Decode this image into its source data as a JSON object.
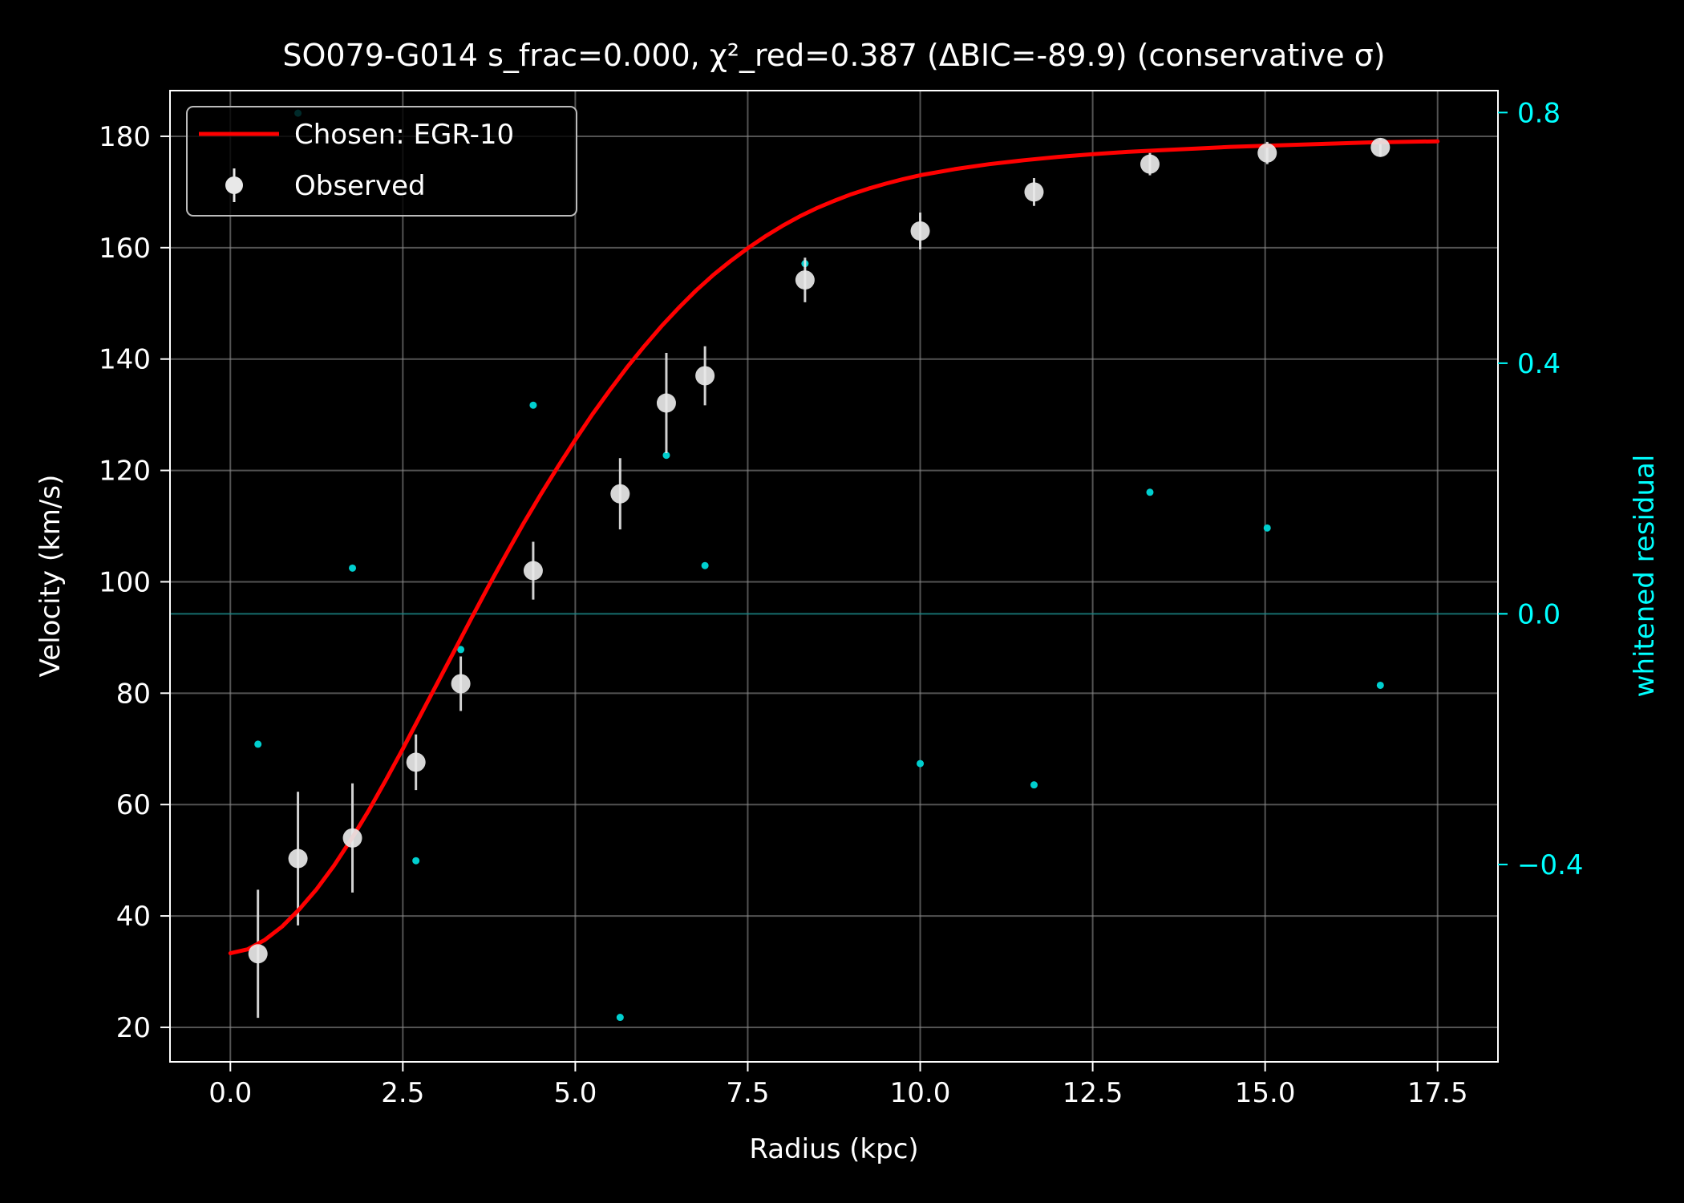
{
  "chart_data": {
    "type": "scatter",
    "title": "SO079-G014  s_frac=0.000, χ²_red=0.387  (ΔBIC=-89.9) (conservative σ)",
    "xlabel": "Radius (kpc)",
    "ylabel": "Velocity (km/s)",
    "y2label": "whitened residual",
    "xlim": [
      -0.875,
      18.375
    ],
    "ylim": [
      13.8,
      188.2
    ],
    "y2lim": [
      -0.715,
      0.835
    ],
    "x_ticks": [
      0.0,
      2.5,
      5.0,
      7.5,
      10.0,
      12.5,
      15.0,
      17.5
    ],
    "x_tick_labels": [
      "0.0",
      "2.5",
      "5.0",
      "7.5",
      "10.0",
      "12.5",
      "15.0",
      "17.5"
    ],
    "y_ticks": [
      20,
      40,
      60,
      80,
      100,
      120,
      140,
      160,
      180
    ],
    "y_tick_labels": [
      "20",
      "40",
      "60",
      "80",
      "100",
      "120",
      "140",
      "160",
      "180"
    ],
    "y2_ticks": [
      -0.4,
      0.0,
      0.4,
      0.8
    ],
    "y2_tick_labels": [
      "−0.4",
      "0.0",
      "0.4",
      "0.8"
    ],
    "grid": true,
    "legend_position": "top-left",
    "colors": {
      "background": "#000000",
      "foreground": "#ffffff",
      "model": "#ff0000",
      "observed": "#e8e8e8",
      "residual": "#00ffff",
      "grid": "#8a8a8a"
    },
    "series": [
      {
        "name": "Chosen: EGR-10",
        "type": "line",
        "x": [
          0.0,
          0.25,
          0.5,
          0.75,
          1.0,
          1.25,
          1.5,
          1.75,
          2.0,
          2.25,
          2.5,
          2.75,
          3.0,
          3.25,
          3.5,
          3.75,
          4.0,
          4.25,
          4.5,
          4.75,
          5.0,
          5.25,
          5.5,
          5.75,
          6.0,
          6.25,
          6.5,
          6.75,
          7.0,
          7.25,
          7.5,
          7.75,
          8.0,
          8.25,
          8.5,
          8.75,
          9.0,
          9.25,
          9.5,
          9.75,
          10.0,
          10.5,
          11.0,
          11.5,
          12.0,
          12.5,
          13.0,
          13.5,
          14.0,
          14.5,
          15.0,
          15.5,
          16.0,
          16.5,
          17.0,
          17.5
        ],
        "y": [
          33.3,
          34.0,
          35.7,
          38.1,
          41.2,
          44.8,
          49.0,
          53.7,
          58.8,
          64.3,
          70.0,
          75.9,
          81.8,
          87.7,
          93.6,
          99.4,
          105.0,
          110.5,
          115.7,
          120.7,
          125.5,
          130.1,
          134.4,
          138.5,
          142.3,
          145.9,
          149.2,
          152.3,
          155.1,
          157.6,
          159.9,
          162.0,
          163.9,
          165.6,
          167.1,
          168.4,
          169.6,
          170.6,
          171.5,
          172.3,
          173.0,
          174.1,
          175.0,
          175.7,
          176.3,
          176.8,
          177.2,
          177.5,
          177.8,
          178.1,
          178.3,
          178.5,
          178.7,
          178.9,
          179.0,
          179.1
        ]
      },
      {
        "name": "Observed",
        "type": "errorbar",
        "x": [
          0.4,
          0.98,
          1.77,
          2.69,
          3.34,
          4.39,
          5.65,
          6.32,
          6.88,
          8.33,
          10.0,
          11.65,
          13.33,
          15.03,
          16.67
        ],
        "y": [
          33.2,
          50.3,
          54.0,
          67.6,
          81.7,
          102.0,
          115.8,
          132.1,
          137.0,
          154.2,
          163.0,
          170.0,
          175.0,
          177.0,
          178.0
        ],
        "yerr": [
          11.5,
          12.0,
          9.8,
          5.0,
          4.9,
          5.2,
          6.4,
          9.0,
          5.3,
          4.0,
          3.3,
          2.5,
          2.0,
          2.0,
          1.6
        ]
      },
      {
        "name": "whitened residual",
        "type": "scatter",
        "axis": "right",
        "x": [
          0.4,
          0.98,
          1.77,
          2.69,
          3.34,
          4.39,
          5.65,
          6.32,
          6.88,
          8.33,
          10.0,
          11.65,
          13.33,
          15.03,
          16.67
        ],
        "y": [
          -0.208,
          0.799,
          0.073,
          -0.394,
          -0.057,
          0.333,
          -0.644,
          0.253,
          0.077,
          0.559,
          -0.239,
          -0.273,
          0.194,
          0.137,
          -0.114
        ]
      }
    ]
  }
}
